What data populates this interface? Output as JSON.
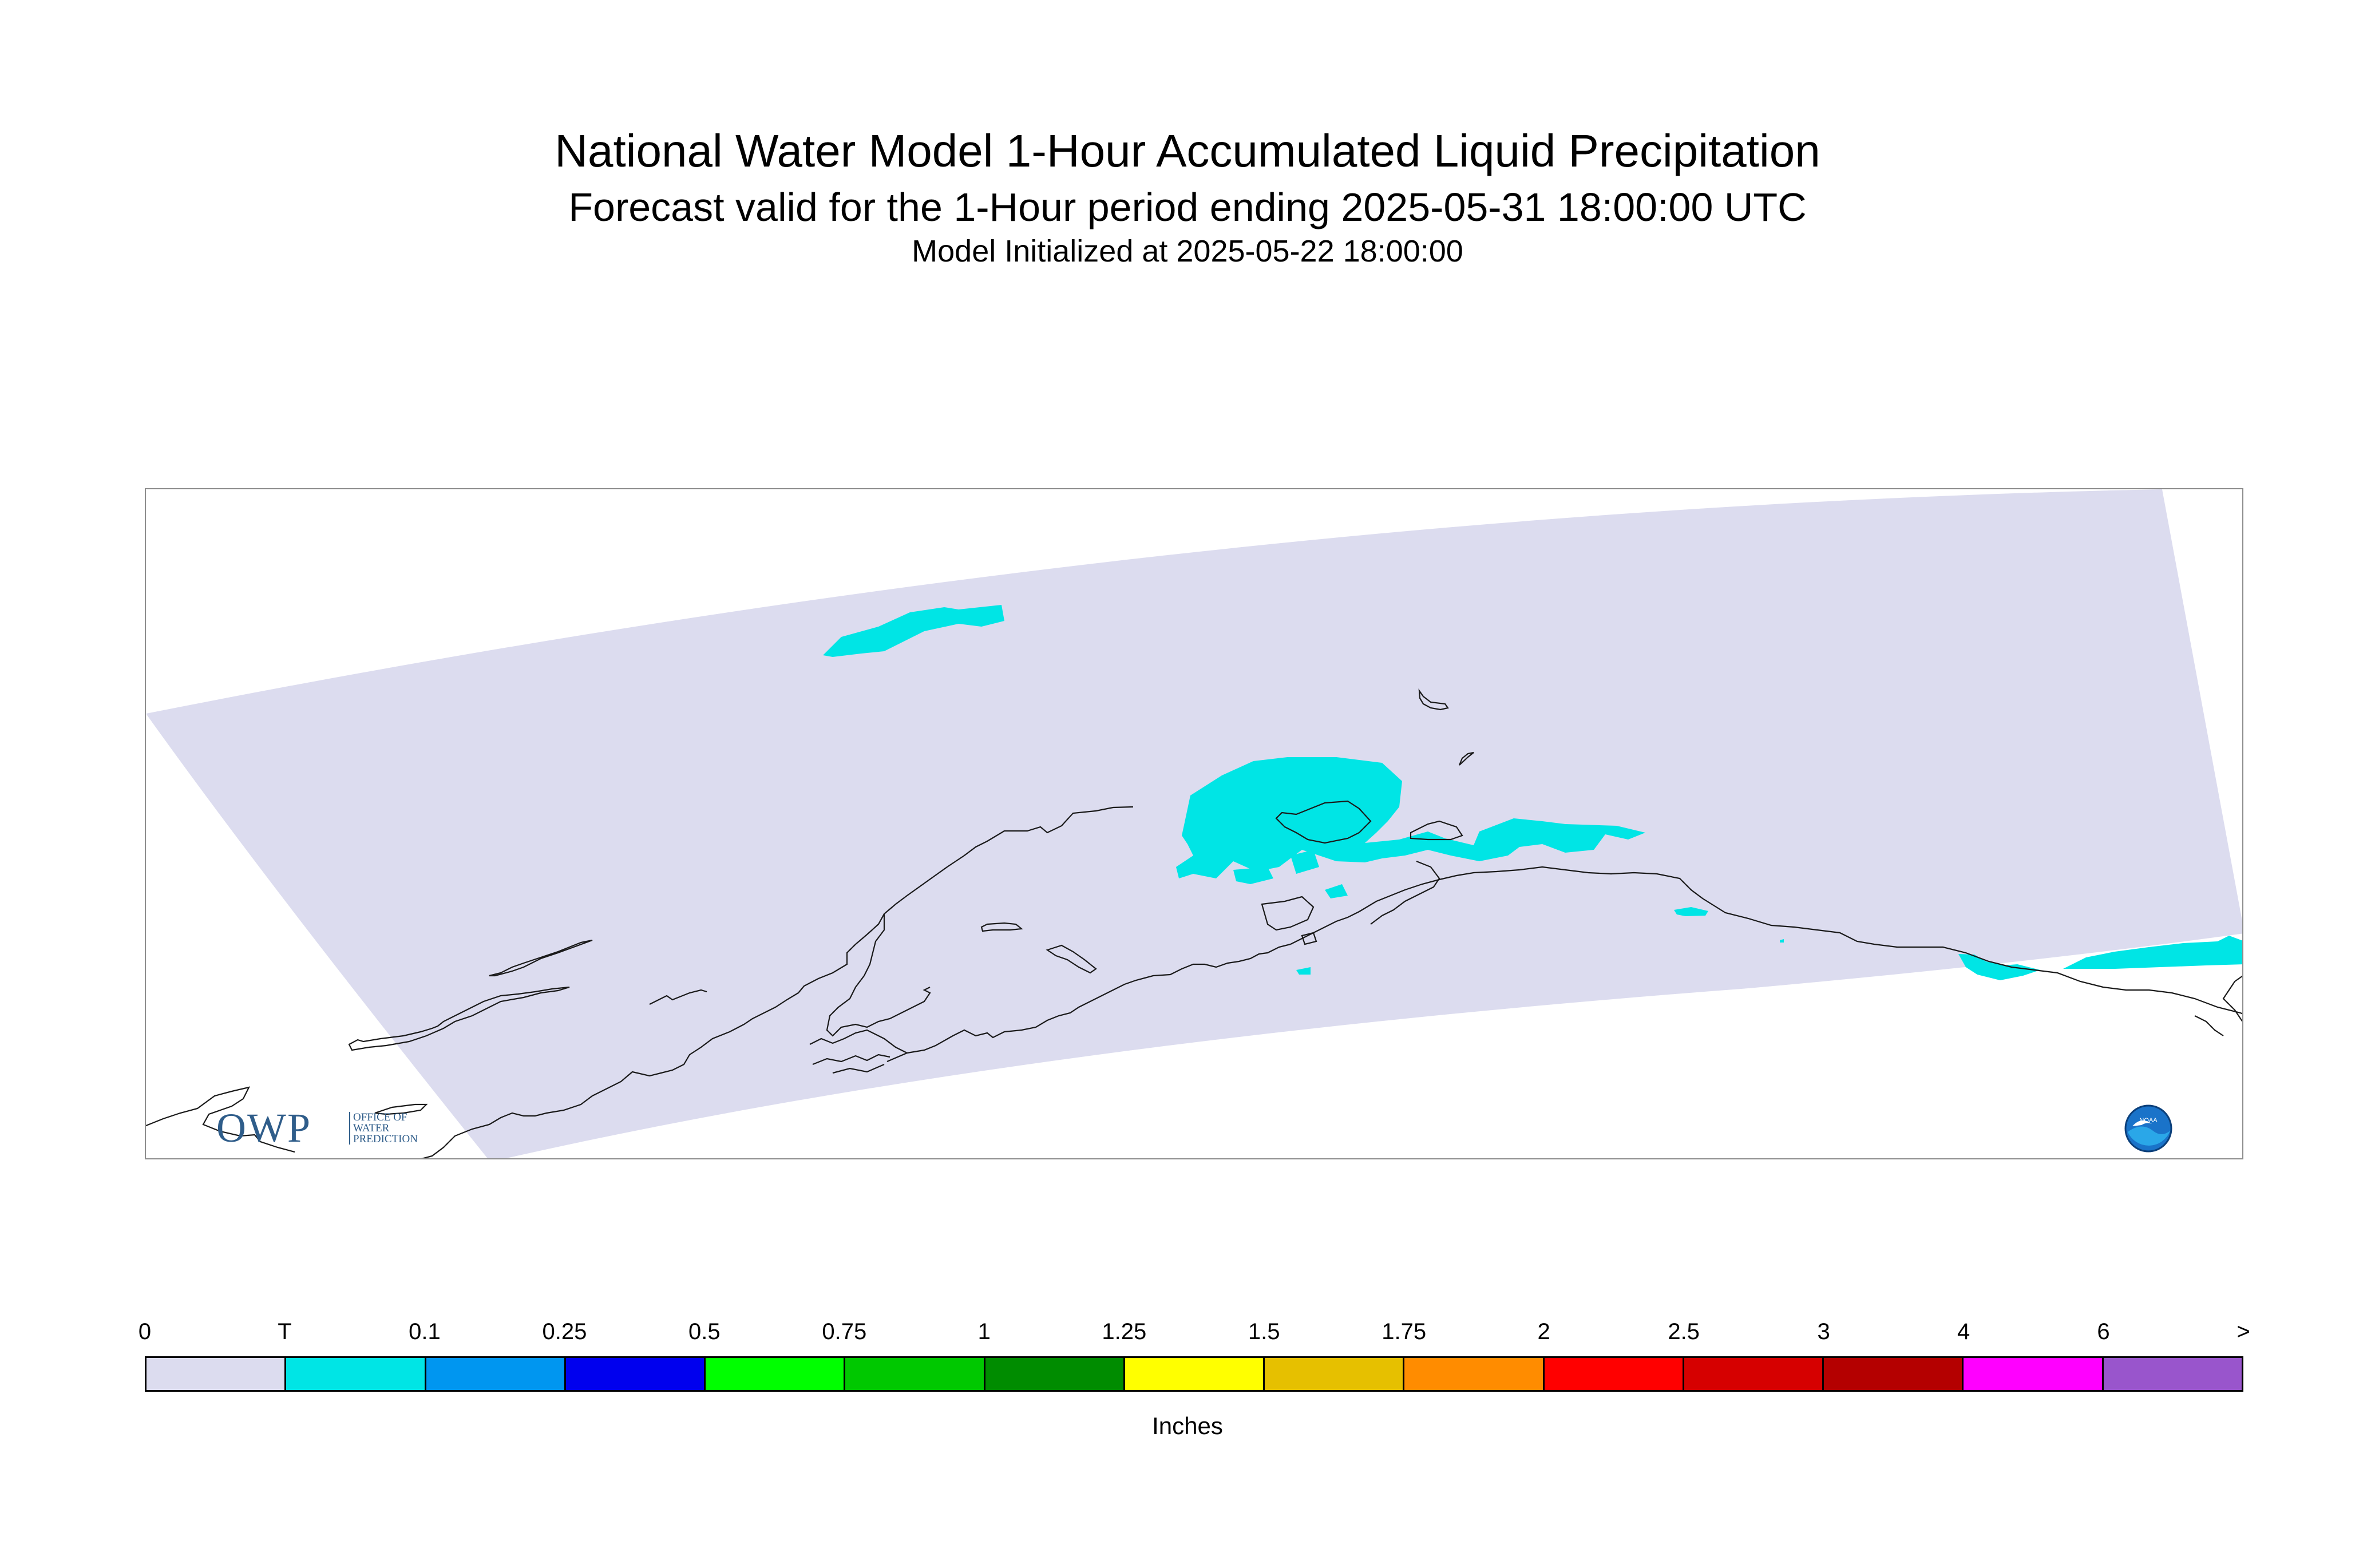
{
  "title": "National Water Model 1-Hour Accumulated Liquid Precipitation",
  "subtitle": "Forecast valid for the 1-Hour period ending 2025-05-31 18:00:00 UTC",
  "init_line": "Model Initialized at 2025-05-22 18:00:00",
  "map": {
    "region": "Alaska",
    "domain_color": "#dcdcef",
    "precip_color": "#00e5e5",
    "coastline_color": "#1a1a1a",
    "precip_category": "T"
  },
  "logos": {
    "owp_text": "OWP",
    "owp_subtext": [
      "OFFICE OF",
      "WATER",
      "PREDICTION"
    ],
    "noaa_text": "NOAA"
  },
  "legend": {
    "units": "Inches",
    "ticks": [
      "0",
      "T",
      "0.1",
      "0.25",
      "0.5",
      "0.75",
      "1",
      "1.25",
      "1.5",
      "1.75",
      "2",
      "2.5",
      "3",
      "4",
      "6",
      ">"
    ],
    "colors": [
      "#dcdcef",
      "#00e5e5",
      "#0096f0",
      "#0000ee",
      "#00ff00",
      "#00c800",
      "#008c00",
      "#ffff00",
      "#e6c000",
      "#ff8c00",
      "#ff0000",
      "#d60000",
      "#b40000",
      "#ff00ff",
      "#9955cc"
    ]
  }
}
